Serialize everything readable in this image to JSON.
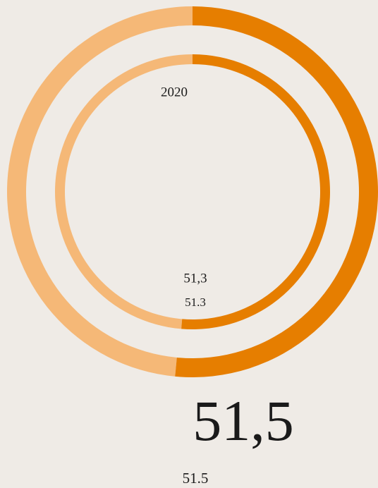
{
  "chart_data": {
    "type": "donut",
    "series": [
      {
        "values": [
          51.5,
          48.5
        ],
        "value_labels": [
          "51,5",
          null
        ],
        "colors": [
          "#e67e00",
          "#f5b877"
        ]
      },
      {
        "name": "2020",
        "values": [
          51.3,
          48.7
        ],
        "value_labels": [
          "51,3",
          null
        ],
        "colors": [
          "#e67e00",
          "#f5b877"
        ]
      }
    ]
  }
}
